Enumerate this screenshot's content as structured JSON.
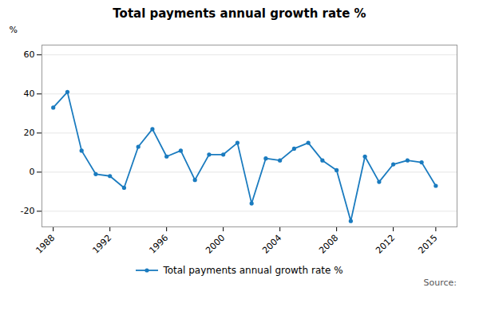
{
  "chart_data": {
    "type": "line",
    "title": "Total payments annual growth rate %",
    "ylabel": "%",
    "x": [
      1988,
      1989,
      1990,
      1991,
      1992,
      1993,
      1994,
      1995,
      1996,
      1997,
      1998,
      1999,
      2000,
      2001,
      2002,
      2003,
      2004,
      2005,
      2006,
      2007,
      2008,
      2009,
      2010,
      2011,
      2012,
      2013,
      2014,
      2015
    ],
    "series": [
      {
        "name": "Total payments annual growth rate %",
        "color": "#1a7bbf",
        "marker": "circle",
        "values": [
          33,
          41,
          11,
          -1,
          -2,
          -8,
          13,
          22,
          8,
          11,
          -4,
          9,
          9,
          15,
          -16,
          7,
          6,
          12,
          15,
          6,
          1,
          -25,
          8,
          -5,
          4,
          6,
          5,
          -7
        ]
      }
    ],
    "xlim": [
      1987.2,
      2016.5
    ],
    "xticks": [
      1988,
      1992,
      1996,
      2000,
      2004,
      2008,
      2012,
      2015
    ],
    "ylim": [
      -28,
      65
    ],
    "yticks": [
      -20,
      0,
      20,
      40,
      60
    ],
    "grid": "y",
    "legend": "bottom",
    "annotations": [
      "Source:"
    ]
  }
}
